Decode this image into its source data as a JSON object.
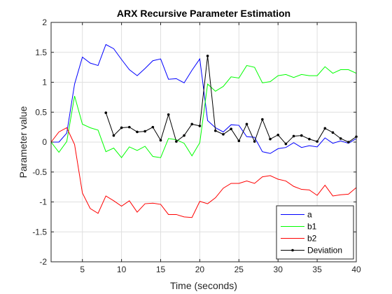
{
  "chart_data": {
    "type": "line",
    "title": "ARX Recursive Parameter Estimation",
    "xlabel": "Time (seconds)",
    "ylabel": "Parameter value",
    "xlim": [
      1,
      40
    ],
    "ylim": [
      -2,
      2
    ],
    "xticks": [
      5,
      10,
      15,
      20,
      25,
      30,
      35,
      40
    ],
    "yticks": [
      -2,
      -1.5,
      -1,
      -0.5,
      0,
      0.5,
      1,
      1.5,
      2
    ],
    "xtick_labels": [
      "5",
      "10",
      "15",
      "20",
      "25",
      "30",
      "35",
      "40"
    ],
    "ytick_labels": [
      "-2",
      "-1.5",
      "-1",
      "-0.5",
      "0",
      "0.5",
      "1",
      "1.5",
      "2"
    ],
    "grid": true,
    "legend_position": "bottom-right",
    "series": [
      {
        "name": "a",
        "color": "#0000ff",
        "marker": "none",
        "x": [
          1,
          2,
          3,
          4,
          5,
          6,
          7,
          8,
          9,
          10,
          11,
          12,
          13,
          14,
          15,
          16,
          17,
          18,
          19,
          20,
          21,
          22,
          23,
          24,
          25,
          26,
          27,
          28,
          29,
          30,
          31,
          32,
          33,
          34,
          35,
          36,
          37,
          38,
          39,
          40
        ],
        "y": [
          0.0,
          0.0,
          0.15,
          0.97,
          1.42,
          1.32,
          1.28,
          1.63,
          1.56,
          1.38,
          1.21,
          1.11,
          1.23,
          1.36,
          1.39,
          1.05,
          1.06,
          0.99,
          1.2,
          1.39,
          0.36,
          0.24,
          0.17,
          0.29,
          0.28,
          0.09,
          0.08,
          -0.16,
          -0.19,
          -0.11,
          -0.09,
          -0.01,
          -0.09,
          -0.06,
          -0.08,
          0.07,
          -0.02,
          0.02,
          -0.02,
          0.06
        ]
      },
      {
        "name": "b1",
        "color": "#00ff00",
        "marker": "none",
        "x": [
          1,
          2,
          3,
          4,
          5,
          6,
          7,
          8,
          9,
          10,
          11,
          12,
          13,
          14,
          15,
          16,
          17,
          18,
          19,
          20,
          21,
          22,
          23,
          24,
          25,
          26,
          27,
          28,
          29,
          30,
          31,
          32,
          33,
          34,
          35,
          36,
          37,
          38,
          39,
          40
        ],
        "y": [
          0.0,
          -0.17,
          0.01,
          0.77,
          0.3,
          0.24,
          0.2,
          -0.16,
          -0.1,
          -0.26,
          -0.08,
          -0.14,
          -0.07,
          -0.24,
          -0.26,
          0.06,
          0.04,
          -0.02,
          -0.23,
          -0.01,
          0.97,
          0.85,
          0.93,
          1.09,
          1.07,
          1.28,
          1.25,
          0.99,
          1.01,
          1.11,
          1.13,
          1.08,
          1.13,
          1.11,
          1.11,
          1.26,
          1.15,
          1.21,
          1.21,
          1.15
        ]
      },
      {
        "name": "b2",
        "color": "#ff0000",
        "marker": "none",
        "x": [
          1,
          2,
          3,
          4,
          5,
          6,
          7,
          8,
          9,
          10,
          11,
          12,
          13,
          14,
          15,
          16,
          17,
          18,
          19,
          20,
          21,
          22,
          23,
          24,
          25,
          26,
          27,
          28,
          29,
          30,
          31,
          32,
          33,
          34,
          35,
          36,
          37,
          38,
          39,
          40
        ],
        "y": [
          0.0,
          0.17,
          0.24,
          -0.04,
          -0.85,
          -1.11,
          -1.19,
          -0.9,
          -0.98,
          -1.07,
          -0.98,
          -1.17,
          -1.03,
          -1.02,
          -1.04,
          -1.21,
          -1.21,
          -1.25,
          -1.26,
          -0.99,
          -1.03,
          -0.93,
          -0.77,
          -0.69,
          -0.69,
          -0.65,
          -0.69,
          -0.58,
          -0.56,
          -0.62,
          -0.65,
          -0.74,
          -0.79,
          -0.8,
          -0.89,
          -0.72,
          -0.9,
          -0.88,
          -0.87,
          -0.76
        ]
      },
      {
        "name": "Deviation",
        "color": "#000000",
        "marker": "dot",
        "x": [
          8,
          9,
          10,
          11,
          12,
          13,
          14,
          15,
          16,
          17,
          18,
          19,
          20,
          21,
          22,
          23,
          24,
          25,
          26,
          27,
          28,
          29,
          30,
          31,
          32,
          33,
          34,
          35,
          36,
          37,
          38,
          39,
          40
        ],
        "y": [
          0.49,
          0.11,
          0.24,
          0.25,
          0.17,
          0.18,
          0.25,
          0.03,
          0.46,
          0.01,
          0.11,
          0.3,
          0.27,
          1.44,
          0.19,
          0.13,
          0.22,
          0.02,
          0.3,
          0.01,
          0.38,
          0.05,
          0.12,
          -0.03,
          0.1,
          0.11,
          0.05,
          0.01,
          0.23,
          0.16,
          0.06,
          0.0,
          0.09
        ]
      }
    ]
  }
}
